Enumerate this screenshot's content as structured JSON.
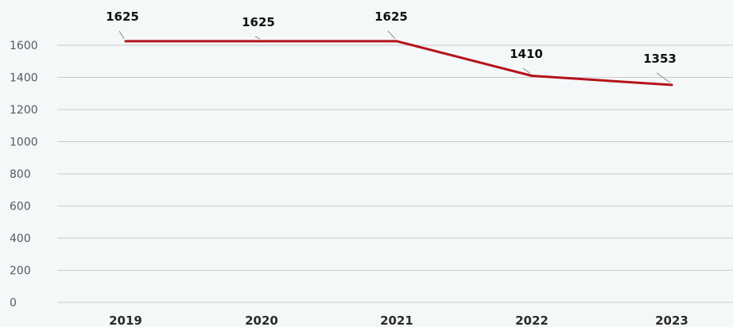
{
  "chart_data": {
    "type": "line",
    "title": "",
    "xlabel": "",
    "ylabel": "",
    "categories": [
      "2019",
      "2020",
      "2021",
      "2022",
      "2023"
    ],
    "series": [
      {
        "values": [
          1625,
          1625,
          1625,
          1410,
          1353
        ],
        "color": "#b5121b"
      }
    ],
    "ylim": [
      0,
      1600
    ],
    "yticks": [
      0,
      200,
      400,
      600,
      800,
      1000,
      1200,
      1400,
      1600
    ],
    "ytick_labels": [
      "0",
      "200",
      "400",
      "600",
      "800",
      "1000",
      "1200",
      "1400",
      "1600"
    ],
    "data_labels": [
      "1625",
      "1625",
      "1625",
      "1410",
      "1353"
    ],
    "grid": "horizontal",
    "legend": "none"
  }
}
